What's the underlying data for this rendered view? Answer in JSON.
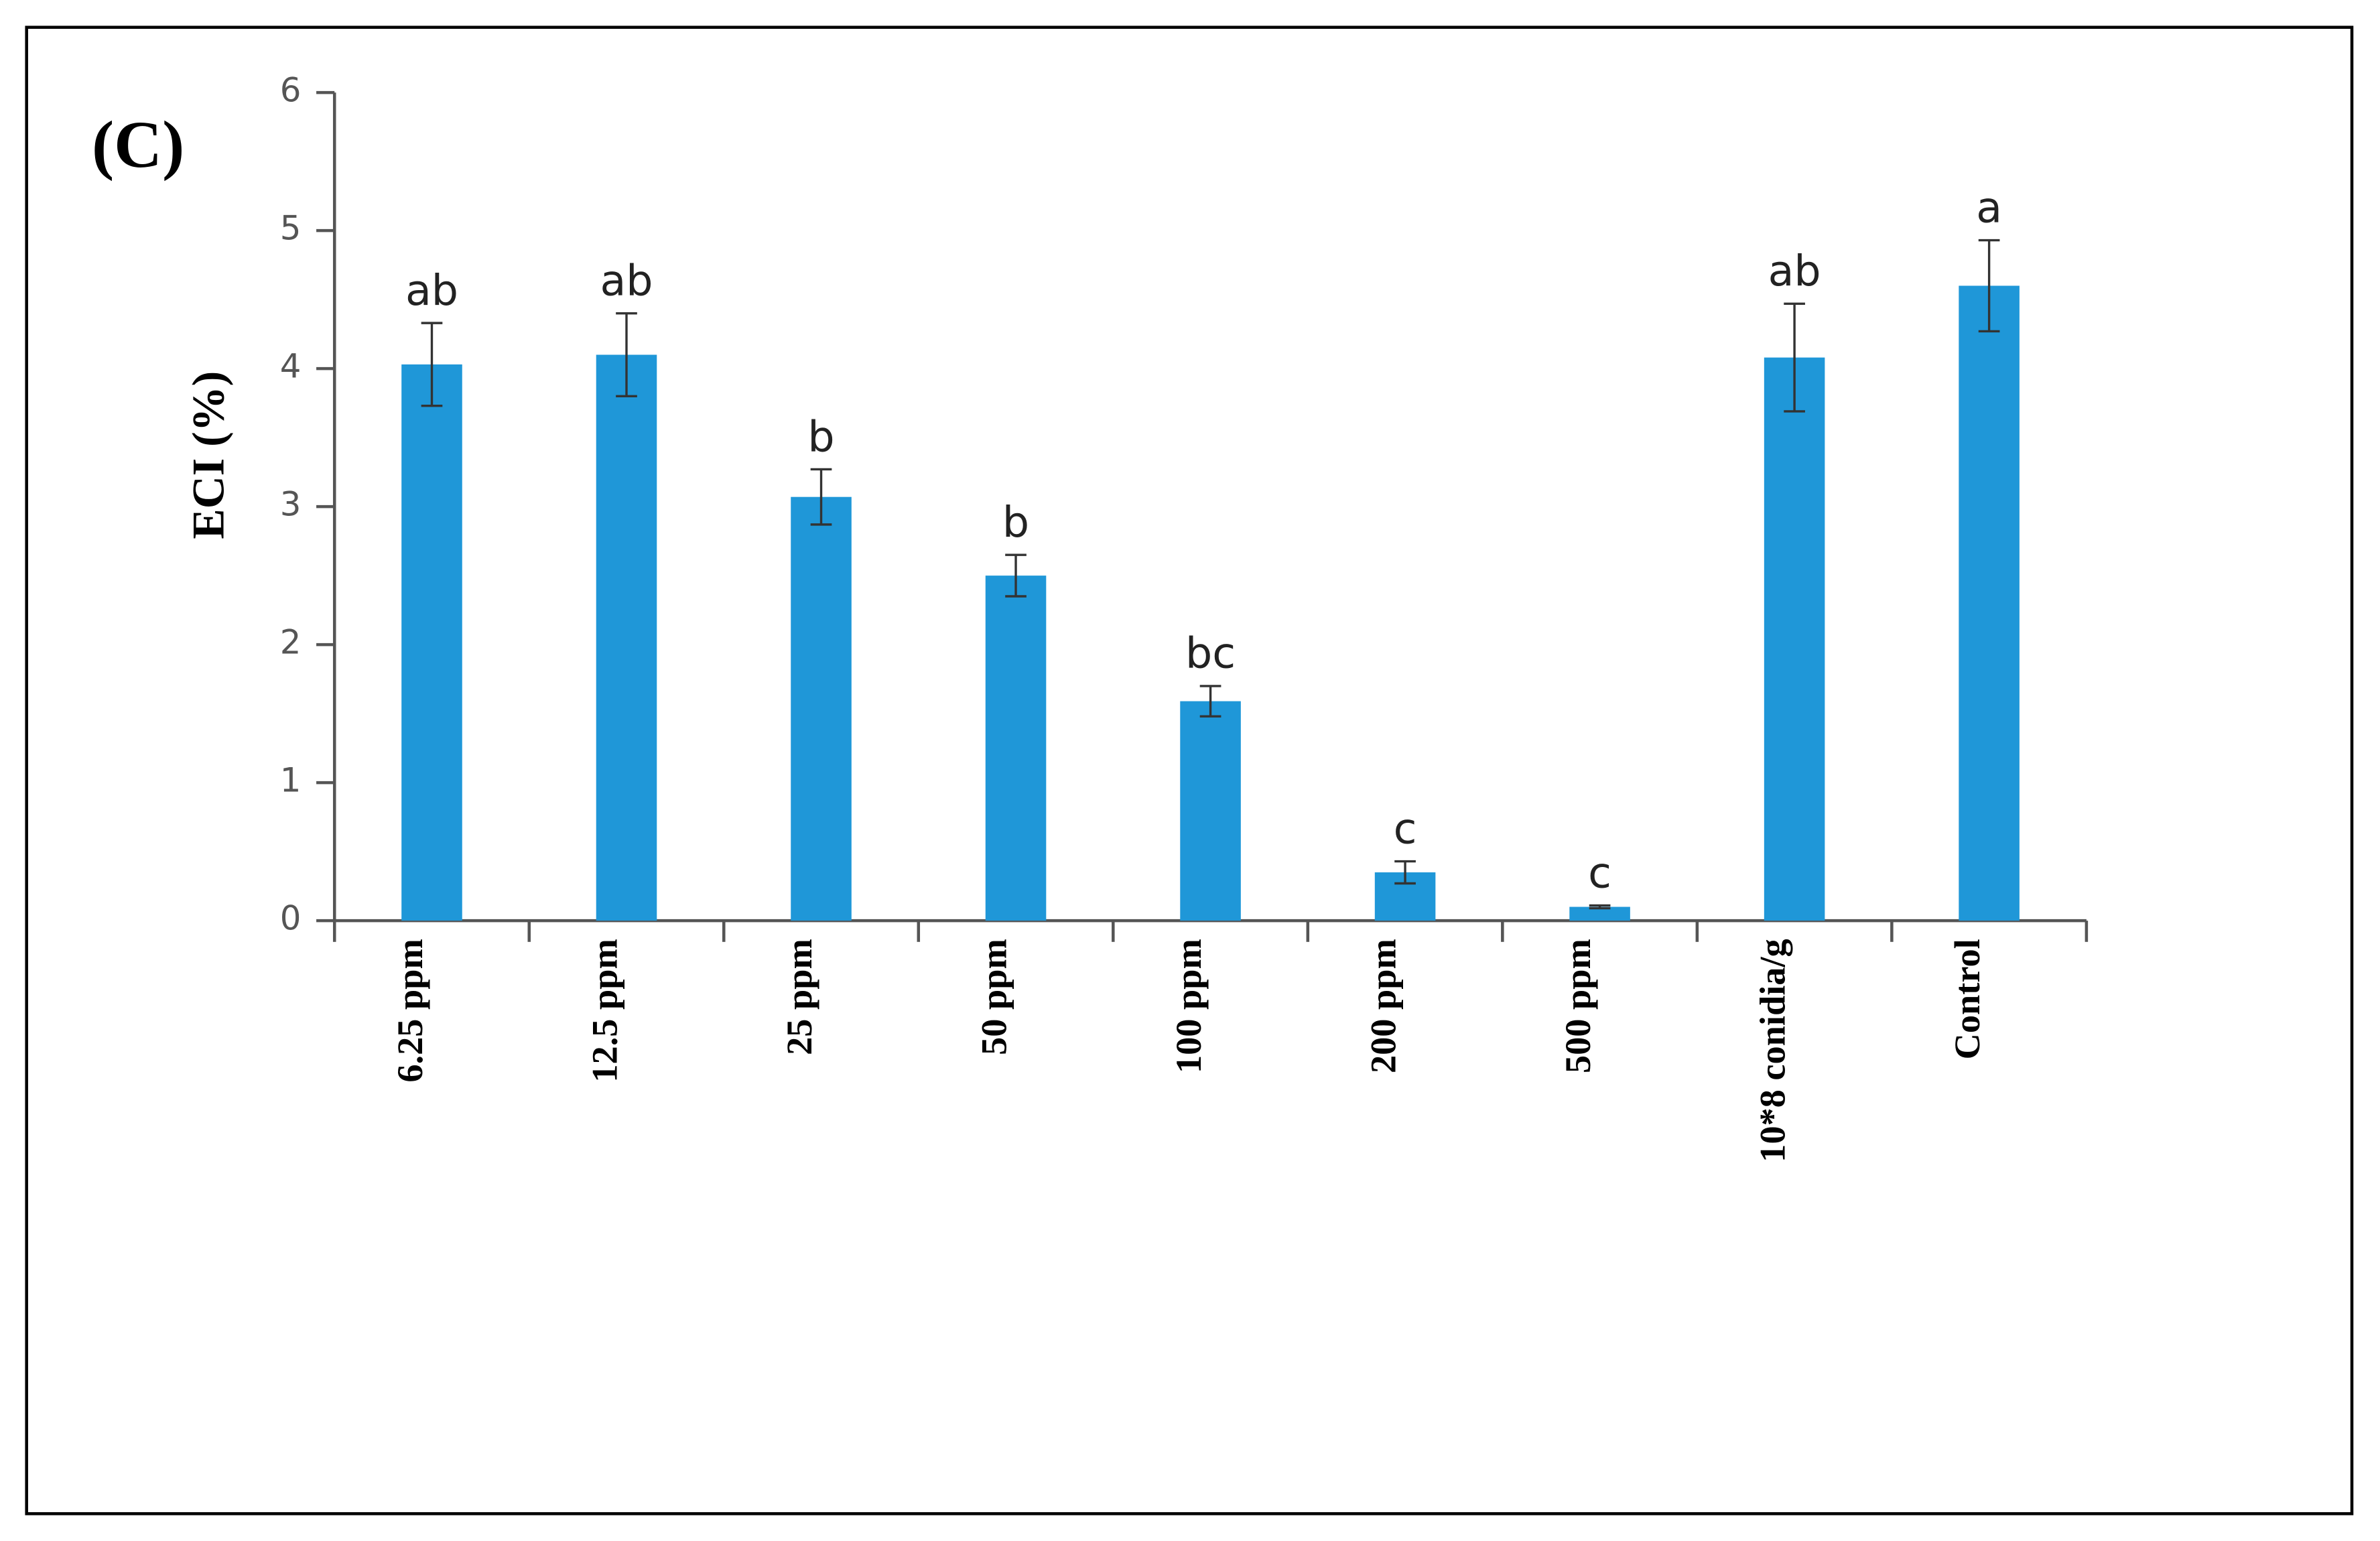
{
  "chart_data": {
    "type": "bar",
    "panel_label": "(C)",
    "y_label": "ECI (%)",
    "categories": [
      "6.25 ppm",
      "12.5 ppm",
      "25 ppm",
      "50 ppm",
      "100 ppm",
      "200 ppm",
      "500 ppm",
      "10*8 conidia/g",
      "Control"
    ],
    "values": [
      4.03,
      4.1,
      3.07,
      2.5,
      1.59,
      0.35,
      0.1,
      4.08,
      4.6
    ],
    "errors": [
      0.3,
      0.3,
      0.2,
      0.15,
      0.11,
      0.08,
      0.01,
      0.39,
      0.33
    ],
    "significance_labels": [
      "ab",
      "ab",
      "b",
      "b",
      "bc",
      "c",
      "c",
      "ab",
      "a"
    ],
    "color": "#1f97d8",
    "ylim": [
      0,
      6
    ],
    "yticks": [
      0,
      1,
      2,
      3,
      4,
      5,
      6
    ],
    "grid": false
  }
}
